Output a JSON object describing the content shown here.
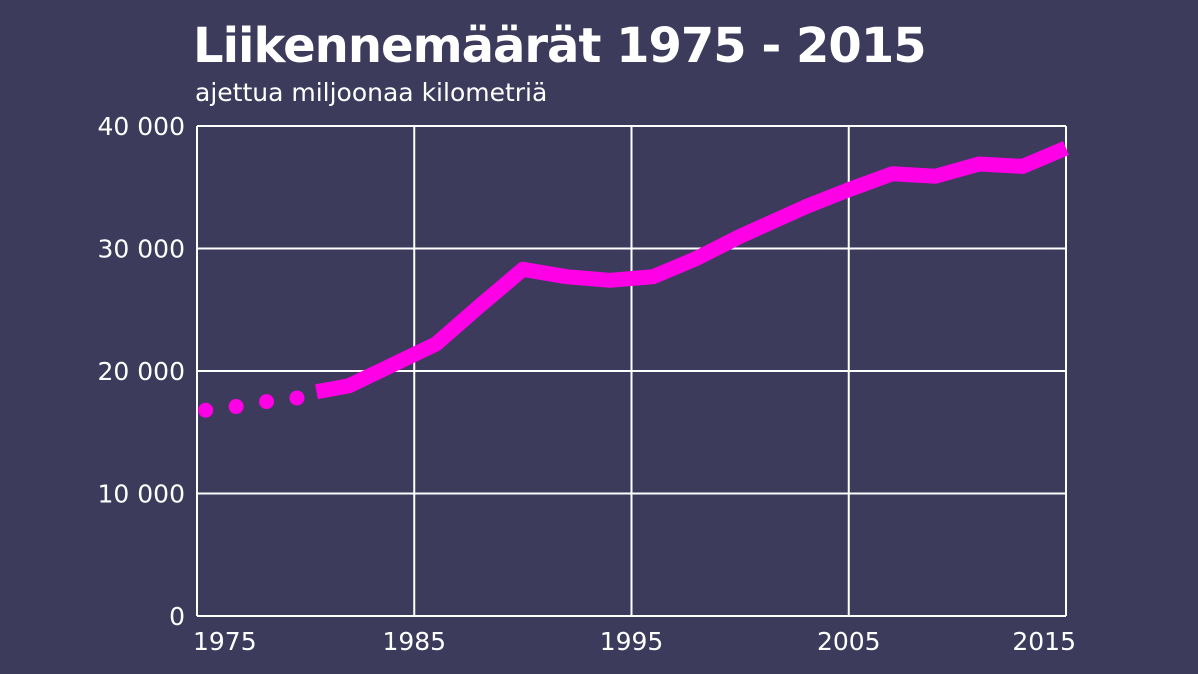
{
  "chart_data": {
    "type": "line",
    "title": "Liikennemäärät 1975 - 2015",
    "subtitle": "ajettua miljoonaa kilometriä",
    "xlim": [
      1975,
      2015
    ],
    "ylim": [
      0,
      40000
    ],
    "x_ticks": [
      1975,
      1985,
      1995,
      2005,
      2015
    ],
    "x_tick_labels": [
      "1975",
      "1985",
      "1995",
      "2005",
      "2015"
    ],
    "y_ticks": [
      0,
      10000,
      20000,
      30000,
      40000
    ],
    "y_tick_labels": [
      "0",
      "10 000",
      "20 000",
      "30 000",
      "40 000"
    ],
    "grid": true,
    "series": [
      {
        "style": "dotted",
        "x": [
          1975.4,
          1976.8,
          1978.2,
          1979.6
        ],
        "y": [
          16800,
          17100,
          17500,
          17800
        ]
      },
      {
        "style": "solid",
        "x": [
          1980.5,
          1982,
          1984,
          1986,
          1988,
          1990,
          1992,
          1994,
          1996,
          1998,
          2000,
          2003,
          2005,
          2007,
          2009,
          2011,
          2013,
          2015
        ],
        "y": [
          18300,
          18800,
          20500,
          22200,
          25300,
          28300,
          27700,
          27400,
          27700,
          29200,
          31000,
          33400,
          34800,
          36100,
          35900,
          36900,
          36700,
          38200
        ]
      }
    ],
    "colors": {
      "background": "#3c3b5c",
      "line": "#ff00e6",
      "grid": "#ffffff",
      "text": "#ffffff"
    }
  }
}
